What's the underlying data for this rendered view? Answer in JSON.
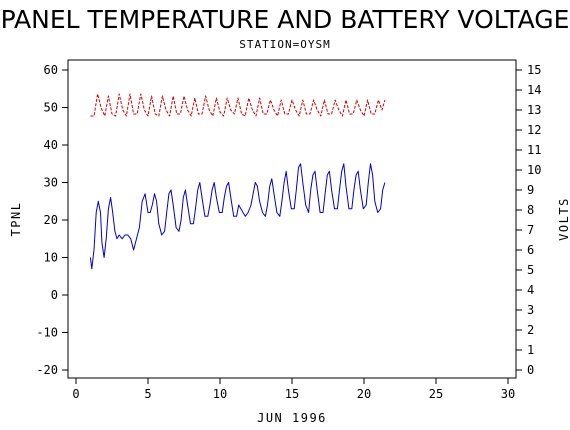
{
  "chart_data": {
    "type": "line",
    "title": "PANEL TEMPERATURE AND BATTERY VOLTAGE",
    "subtitle": "STATION=OYSM",
    "xlabel": "JUN 1996",
    "ylabel": "TPNL",
    "y2label": "VOLTS",
    "xlim": [
      0,
      30
    ],
    "xticks": [
      0,
      5,
      10,
      15,
      20,
      25,
      30
    ],
    "ylim": [
      -20,
      60
    ],
    "yticks": [
      -20,
      -10,
      0,
      10,
      20,
      30,
      40,
      50,
      60
    ],
    "y2lim": [
      0,
      15
    ],
    "y2ticks": [
      0,
      1,
      2,
      3,
      4,
      5,
      6,
      7,
      8,
      9,
      10,
      11,
      12,
      13,
      14,
      15
    ],
    "grid": false,
    "series": [
      {
        "axis": "left",
        "color": "#0000cc",
        "style": "solid",
        "x": [
          1.0,
          1.1,
          1.25,
          1.4,
          1.55,
          1.7,
          1.8,
          1.95,
          2.1,
          2.25,
          2.4,
          2.55,
          2.7,
          2.85,
          3.0,
          3.2,
          3.4,
          3.6,
          3.8,
          4.0,
          4.2,
          4.4,
          4.6,
          4.8,
          5.0,
          5.15,
          5.3,
          5.45,
          5.6,
          5.75,
          5.95,
          6.15,
          6.3,
          6.45,
          6.6,
          6.75,
          6.95,
          7.15,
          7.3,
          7.45,
          7.6,
          7.75,
          7.95,
          8.15,
          8.3,
          8.45,
          8.6,
          8.75,
          8.95,
          9.15,
          9.3,
          9.45,
          9.6,
          9.75,
          9.95,
          10.15,
          10.3,
          10.45,
          10.6,
          10.75,
          10.95,
          11.15,
          11.3,
          11.45,
          11.6,
          11.75,
          11.95,
          12.15,
          12.3,
          12.45,
          12.6,
          12.75,
          12.95,
          13.15,
          13.3,
          13.45,
          13.6,
          13.75,
          13.95,
          14.15,
          14.3,
          14.45,
          14.6,
          14.75,
          14.95,
          15.15,
          15.3,
          15.45,
          15.6,
          15.75,
          15.95,
          16.15,
          16.3,
          16.45,
          16.6,
          16.75,
          16.95,
          17.15,
          17.3,
          17.45,
          17.6,
          17.75,
          17.95,
          18.15,
          18.3,
          18.45,
          18.6,
          18.75,
          18.95,
          19.15,
          19.3,
          19.45,
          19.6,
          19.75,
          19.95,
          20.15,
          20.3,
          20.45,
          20.6,
          20.75,
          20.95,
          21.15,
          21.3,
          21.45
        ],
        "y": [
          10,
          7,
          12,
          22,
          25,
          22,
          14,
          10,
          15,
          23,
          26,
          22,
          17,
          15,
          16,
          15,
          16,
          16,
          15,
          12,
          15,
          18,
          25,
          27,
          22,
          22,
          24,
          27,
          25,
          19,
          16,
          17,
          22,
          27,
          28,
          24,
          18,
          17,
          20,
          26,
          28,
          24,
          19,
          19,
          23,
          28,
          30,
          26,
          21,
          21,
          24,
          28,
          30,
          26,
          22,
          22,
          26,
          29,
          30,
          26,
          21,
          21,
          24,
          23,
          22,
          21,
          22,
          24,
          27,
          30,
          29,
          25,
          22,
          21,
          24,
          29,
          31,
          27,
          22,
          21,
          25,
          30,
          33,
          28,
          23,
          23,
          28,
          34,
          35,
          30,
          24,
          22,
          28,
          32,
          33,
          28,
          22,
          22,
          27,
          32,
          33,
          28,
          23,
          23,
          28,
          33,
          35,
          29,
          23,
          23,
          28,
          32,
          33,
          28,
          23,
          24,
          30,
          35,
          32,
          25,
          22,
          23,
          28,
          30
        ]
      },
      {
        "axis": "right",
        "color": "#cc0000",
        "style": "dashed",
        "x": [
          1.0,
          1.25,
          1.5,
          1.75,
          2.0,
          2.25,
          2.5,
          2.75,
          3.0,
          3.25,
          3.5,
          3.75,
          4.0,
          4.25,
          4.5,
          4.75,
          5.0,
          5.25,
          5.5,
          5.75,
          6.0,
          6.25,
          6.5,
          6.75,
          7.0,
          7.25,
          7.5,
          7.75,
          8.0,
          8.25,
          8.5,
          8.75,
          9.0,
          9.25,
          9.5,
          9.75,
          10.0,
          10.25,
          10.5,
          10.75,
          11.0,
          11.25,
          11.5,
          11.75,
          12.0,
          12.25,
          12.5,
          12.75,
          13.0,
          13.25,
          13.5,
          13.75,
          14.0,
          14.25,
          14.5,
          14.75,
          15.0,
          15.25,
          15.5,
          15.75,
          16.0,
          16.25,
          16.5,
          16.75,
          17.0,
          17.25,
          17.5,
          17.75,
          18.0,
          18.25,
          18.5,
          18.75,
          19.0,
          19.25,
          19.5,
          19.75,
          20.0,
          20.25,
          20.5,
          20.75,
          21.0,
          21.25,
          21.45
        ],
        "y": [
          12.7,
          12.7,
          13.8,
          13.1,
          12.7,
          13.7,
          12.8,
          12.7,
          13.8,
          13.0,
          12.7,
          13.8,
          12.8,
          12.8,
          13.8,
          13.0,
          12.7,
          13.7,
          12.8,
          12.7,
          13.7,
          13.0,
          12.7,
          13.7,
          12.8,
          12.8,
          13.7,
          13.0,
          12.7,
          13.6,
          12.8,
          12.8,
          13.7,
          13.0,
          12.7,
          13.6,
          12.9,
          12.7,
          13.6,
          13.0,
          12.8,
          13.6,
          12.8,
          12.7,
          13.6,
          13.0,
          12.7,
          13.6,
          12.8,
          12.8,
          13.5,
          13.0,
          12.7,
          13.5,
          12.8,
          12.8,
          13.5,
          13.0,
          12.7,
          13.5,
          12.8,
          12.8,
          13.5,
          13.0,
          12.7,
          13.5,
          12.8,
          12.8,
          13.5,
          13.0,
          12.7,
          13.5,
          12.8,
          12.8,
          13.5,
          13.0,
          12.7,
          13.5,
          12.8,
          12.8,
          13.5,
          13.0,
          13.5
        ]
      }
    ]
  }
}
